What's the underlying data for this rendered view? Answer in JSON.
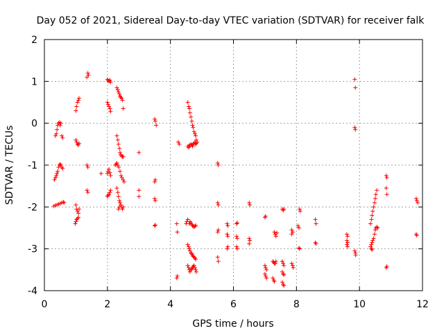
{
  "chart_data": {
    "type": "scatter",
    "title": "Day 052 of 2021, Sidereal Day-to-day VTEC variation (SDTVAR) for receiver falk",
    "xlabel": "GPS time / hours",
    "ylabel": "SDTVAR / TECUs",
    "xlim": [
      0,
      12
    ],
    "ylim": [
      -4,
      2
    ],
    "xticks": [
      0,
      2,
      4,
      6,
      8,
      10,
      12
    ],
    "yticks": [
      -4,
      -3,
      -2,
      -1,
      0,
      1,
      2
    ],
    "xtick_labels": [
      "0",
      "2",
      "4",
      "6",
      "8",
      "10",
      "12"
    ],
    "ytick_labels": [
      "-4",
      "-3",
      "-2",
      "-1",
      "0",
      "1",
      "2"
    ],
    "grid": true,
    "marker": "plus",
    "color": "#ff0000",
    "series": [
      {
        "name": "SDTVAR",
        "points": [
          [
            0.35,
            -0.3
          ],
          [
            0.38,
            -0.25
          ],
          [
            0.4,
            -0.15
          ],
          [
            0.42,
            -0.05
          ],
          [
            0.45,
            0.0
          ],
          [
            0.48,
            0.02
          ],
          [
            0.5,
            -0.05
          ],
          [
            0.52,
            0.0
          ],
          [
            0.55,
            -0.3
          ],
          [
            0.58,
            -0.35
          ],
          [
            0.32,
            -1.35
          ],
          [
            0.35,
            -1.3
          ],
          [
            0.38,
            -1.25
          ],
          [
            0.4,
            -1.2
          ],
          [
            0.42,
            -1.15
          ],
          [
            0.45,
            -1.05
          ],
          [
            0.48,
            -1.0
          ],
          [
            0.5,
            -0.98
          ],
          [
            0.52,
            -1.0
          ],
          [
            0.55,
            -1.05
          ],
          [
            0.58,
            -1.08
          ],
          [
            0.3,
            -1.98
          ],
          [
            0.35,
            -1.96
          ],
          [
            0.4,
            -1.95
          ],
          [
            0.45,
            -1.93
          ],
          [
            0.5,
            -1.92
          ],
          [
            0.55,
            -1.9
          ],
          [
            0.6,
            -1.88
          ],
          [
            0.62,
            -1.9
          ],
          [
            1.0,
            0.3
          ],
          [
            1.02,
            0.4
          ],
          [
            1.05,
            0.5
          ],
          [
            1.08,
            0.55
          ],
          [
            1.1,
            0.6
          ],
          [
            1.0,
            -0.4
          ],
          [
            1.02,
            -0.45
          ],
          [
            1.05,
            -0.5
          ],
          [
            1.08,
            -0.52
          ],
          [
            1.1,
            -0.48
          ],
          [
            1.0,
            -1.95
          ],
          [
            1.02,
            -2.05
          ],
          [
            1.05,
            -2.1
          ],
          [
            1.08,
            -2.15
          ],
          [
            1.1,
            -2.05
          ],
          [
            0.98,
            -2.4
          ],
          [
            1.0,
            -2.35
          ],
          [
            1.02,
            -2.3
          ],
          [
            1.05,
            -2.28
          ],
          [
            1.08,
            -2.25
          ],
          [
            1.35,
            1.1
          ],
          [
            1.38,
            1.2
          ],
          [
            1.4,
            1.15
          ],
          [
            1.35,
            -1.0
          ],
          [
            1.38,
            -1.05
          ],
          [
            1.35,
            -1.6
          ],
          [
            1.38,
            -1.65
          ],
          [
            1.8,
            -1.2
          ],
          [
            2.0,
            1.05
          ],
          [
            2.02,
            1.02
          ],
          [
            2.05,
            1.0
          ],
          [
            2.08,
            1.03
          ],
          [
            2.1,
            0.98
          ],
          [
            2.0,
            0.5
          ],
          [
            2.02,
            0.45
          ],
          [
            2.05,
            0.4
          ],
          [
            2.08,
            0.35
          ],
          [
            2.1,
            0.28
          ],
          [
            2.0,
            -1.2
          ],
          [
            2.02,
            -1.15
          ],
          [
            2.05,
            -1.1
          ],
          [
            2.08,
            -1.18
          ],
          [
            2.1,
            -1.25
          ],
          [
            2.0,
            -1.75
          ],
          [
            2.02,
            -1.72
          ],
          [
            2.05,
            -1.7
          ],
          [
            2.08,
            -1.65
          ],
          [
            2.1,
            -1.6
          ],
          [
            2.3,
            0.85
          ],
          [
            2.33,
            0.8
          ],
          [
            2.35,
            0.75
          ],
          [
            2.38,
            0.7
          ],
          [
            2.4,
            0.65
          ],
          [
            2.42,
            0.62
          ],
          [
            2.45,
            0.6
          ],
          [
            2.48,
            0.55
          ],
          [
            2.5,
            0.35
          ],
          [
            2.3,
            -0.3
          ],
          [
            2.33,
            -0.4
          ],
          [
            2.35,
            -0.5
          ],
          [
            2.38,
            -0.6
          ],
          [
            2.4,
            -0.7
          ],
          [
            2.42,
            -0.75
          ],
          [
            2.45,
            -0.78
          ],
          [
            2.48,
            -0.8
          ],
          [
            2.5,
            -0.8
          ],
          [
            2.25,
            -1.0
          ],
          [
            2.28,
            -0.98
          ],
          [
            2.3,
            -0.95
          ],
          [
            2.33,
            -1.0
          ],
          [
            2.36,
            -1.05
          ],
          [
            2.4,
            -1.15
          ],
          [
            2.43,
            -1.25
          ],
          [
            2.46,
            -1.3
          ],
          [
            2.5,
            -1.35
          ],
          [
            2.53,
            -1.4
          ],
          [
            2.3,
            -1.55
          ],
          [
            2.33,
            -1.65
          ],
          [
            2.35,
            -1.75
          ],
          [
            2.38,
            -1.85
          ],
          [
            2.4,
            -1.9
          ],
          [
            2.42,
            -1.95
          ],
          [
            2.45,
            -2.0
          ],
          [
            2.48,
            -2.05
          ],
          [
            2.5,
            -2.0
          ],
          [
            2.35,
            -2.05
          ],
          [
            2.38,
            -2.0
          ],
          [
            3.0,
            -0.7
          ],
          [
            3.0,
            -1.6
          ],
          [
            3.0,
            -1.75
          ],
          [
            3.5,
            0.1
          ],
          [
            3.52,
            0.05
          ],
          [
            3.55,
            -0.05
          ],
          [
            3.5,
            -1.4
          ],
          [
            3.52,
            -1.35
          ],
          [
            3.5,
            -1.8
          ],
          [
            3.52,
            -1.85
          ],
          [
            3.5,
            -2.45
          ],
          [
            3.52,
            -2.43
          ],
          [
            4.2,
            -3.7
          ],
          [
            4.22,
            -3.65
          ],
          [
            4.2,
            -2.4
          ],
          [
            4.22,
            -2.6
          ],
          [
            4.25,
            -0.45
          ],
          [
            4.28,
            -0.5
          ],
          [
            4.5,
            -2.4
          ],
          [
            4.52,
            -2.35
          ],
          [
            4.55,
            -2.3
          ],
          [
            4.55,
            0.5
          ],
          [
            4.58,
            0.4
          ],
          [
            4.6,
            0.35
          ],
          [
            4.62,
            0.25
          ],
          [
            4.65,
            0.15
          ],
          [
            4.68,
            0.05
          ],
          [
            4.7,
            -0.05
          ],
          [
            4.72,
            -0.1
          ],
          [
            4.75,
            -0.2
          ],
          [
            4.78,
            -0.25
          ],
          [
            4.8,
            -0.3
          ],
          [
            4.82,
            -0.4
          ],
          [
            4.85,
            -0.45
          ],
          [
            4.55,
            -0.55
          ],
          [
            4.58,
            -0.58
          ],
          [
            4.6,
            -0.55
          ],
          [
            4.62,
            -0.52
          ],
          [
            4.65,
            -0.5
          ],
          [
            4.68,
            -0.52
          ],
          [
            4.7,
            -0.55
          ],
          [
            4.72,
            -0.5
          ],
          [
            4.75,
            -0.48
          ],
          [
            4.78,
            -0.45
          ],
          [
            4.8,
            -0.5
          ],
          [
            4.82,
            -0.48
          ],
          [
            4.55,
            -2.9
          ],
          [
            4.58,
            -2.95
          ],
          [
            4.6,
            -3.0
          ],
          [
            4.62,
            -3.05
          ],
          [
            4.65,
            -3.1
          ],
          [
            4.68,
            -3.12
          ],
          [
            4.7,
            -3.15
          ],
          [
            4.72,
            -3.18
          ],
          [
            4.75,
            -3.2
          ],
          [
            4.78,
            -3.22
          ],
          [
            4.8,
            -3.25
          ],
          [
            4.55,
            -3.4
          ],
          [
            4.58,
            -3.45
          ],
          [
            4.6,
            -3.5
          ],
          [
            4.62,
            -3.55
          ],
          [
            4.65,
            -3.5
          ],
          [
            4.68,
            -3.48
          ],
          [
            4.7,
            -3.45
          ],
          [
            4.72,
            -3.42
          ],
          [
            4.75,
            -3.4
          ],
          [
            4.78,
            -3.45
          ],
          [
            4.8,
            -3.5
          ],
          [
            4.82,
            -3.55
          ],
          [
            4.6,
            -2.4
          ],
          [
            4.62,
            -2.35
          ],
          [
            4.65,
            -2.38
          ],
          [
            4.68,
            -2.42
          ],
          [
            4.7,
            -2.45
          ],
          [
            4.72,
            -2.45
          ],
          [
            4.75,
            -2.48
          ],
          [
            4.78,
            -2.46
          ],
          [
            4.8,
            -2.44
          ],
          [
            5.5,
            -0.95
          ],
          [
            5.52,
            -1.0
          ],
          [
            5.5,
            -1.9
          ],
          [
            5.52,
            -1.95
          ],
          [
            5.5,
            -2.6
          ],
          [
            5.52,
            -2.55
          ],
          [
            5.5,
            -3.2
          ],
          [
            5.52,
            -3.3
          ],
          [
            5.8,
            -2.4
          ],
          [
            5.82,
            -2.45
          ],
          [
            5.8,
            -2.65
          ],
          [
            5.82,
            -2.7
          ],
          [
            5.8,
            -3.0
          ],
          [
            5.82,
            -2.95
          ],
          [
            6.1,
            -2.4
          ],
          [
            6.12,
            -2.38
          ],
          [
            6.1,
            -2.7
          ],
          [
            6.12,
            -2.75
          ],
          [
            6.1,
            -2.95
          ],
          [
            6.12,
            -3.0
          ],
          [
            6.5,
            -1.9
          ],
          [
            6.52,
            -1.95
          ],
          [
            6.5,
            -2.75
          ],
          [
            6.52,
            -2.8
          ],
          [
            6.5,
            -2.88
          ],
          [
            7.0,
            -2.25
          ],
          [
            7.02,
            -2.22
          ],
          [
            7.0,
            -3.4
          ],
          [
            7.02,
            -3.45
          ],
          [
            7.05,
            -3.5
          ],
          [
            7.0,
            -3.6
          ],
          [
            7.02,
            -3.65
          ],
          [
            7.05,
            -3.7
          ],
          [
            7.3,
            -2.6
          ],
          [
            7.32,
            -2.65
          ],
          [
            7.35,
            -2.7
          ],
          [
            7.38,
            -2.62
          ],
          [
            7.25,
            -3.3
          ],
          [
            7.28,
            -3.32
          ],
          [
            7.3,
            -3.35
          ],
          [
            7.33,
            -3.35
          ],
          [
            7.35,
            -3.3
          ],
          [
            7.25,
            -3.7
          ],
          [
            7.28,
            -3.75
          ],
          [
            7.3,
            -3.78
          ],
          [
            7.55,
            -2.05
          ],
          [
            7.58,
            -2.08
          ],
          [
            7.6,
            -2.05
          ],
          [
            7.55,
            -3.3
          ],
          [
            7.58,
            -3.35
          ],
          [
            7.6,
            -3.4
          ],
          [
            7.55,
            -3.55
          ],
          [
            7.58,
            -3.6
          ],
          [
            7.6,
            -3.62
          ],
          [
            7.55,
            -3.8
          ],
          [
            7.58,
            -3.85
          ],
          [
            7.6,
            -3.88
          ],
          [
            7.85,
            -2.55
          ],
          [
            7.88,
            -2.6
          ],
          [
            7.85,
            -2.65
          ],
          [
            7.85,
            -3.35
          ],
          [
            7.88,
            -3.4
          ],
          [
            7.9,
            -3.45
          ],
          [
            8.1,
            -2.05
          ],
          [
            8.12,
            -2.1
          ],
          [
            8.05,
            -2.45
          ],
          [
            8.08,
            -2.5
          ],
          [
            8.08,
            -2.98
          ],
          [
            8.1,
            -3.0
          ],
          [
            8.6,
            -2.3
          ],
          [
            8.62,
            -2.4
          ],
          [
            8.6,
            -2.85
          ],
          [
            8.62,
            -2.88
          ],
          [
            9.6,
            -2.65
          ],
          [
            9.62,
            -2.7
          ],
          [
            9.6,
            -2.8
          ],
          [
            9.62,
            -2.85
          ],
          [
            9.6,
            -2.9
          ],
          [
            9.62,
            -2.95
          ],
          [
            9.85,
            1.05
          ],
          [
            9.87,
            0.85
          ],
          [
            9.85,
            -0.1
          ],
          [
            9.87,
            -0.15
          ],
          [
            9.85,
            -3.05
          ],
          [
            9.87,
            -3.1
          ],
          [
            9.88,
            -3.15
          ],
          [
            10.35,
            -2.4
          ],
          [
            10.38,
            -2.3
          ],
          [
            10.4,
            -2.2
          ],
          [
            10.42,
            -2.1
          ],
          [
            10.45,
            -2.0
          ],
          [
            10.48,
            -1.9
          ],
          [
            10.5,
            -1.8
          ],
          [
            10.52,
            -1.7
          ],
          [
            10.55,
            -1.6
          ],
          [
            10.35,
            -2.95
          ],
          [
            10.38,
            -2.9
          ],
          [
            10.4,
            -2.85
          ],
          [
            10.42,
            -2.8
          ],
          [
            10.45,
            -2.75
          ],
          [
            10.48,
            -2.65
          ],
          [
            10.5,
            -2.55
          ],
          [
            10.52,
            -2.5
          ],
          [
            10.55,
            -2.48
          ],
          [
            10.58,
            -2.5
          ],
          [
            10.38,
            -3.0
          ],
          [
            10.4,
            -3.02
          ],
          [
            10.85,
            -1.25
          ],
          [
            10.87,
            -1.3
          ],
          [
            10.85,
            -1.55
          ],
          [
            10.87,
            -1.7
          ],
          [
            10.85,
            -3.45
          ],
          [
            10.87,
            -3.42
          ],
          [
            11.8,
            -1.8
          ],
          [
            11.82,
            -1.85
          ],
          [
            11.85,
            -1.9
          ],
          [
            11.8,
            -2.65
          ],
          [
            11.82,
            -2.68
          ]
        ]
      }
    ]
  }
}
